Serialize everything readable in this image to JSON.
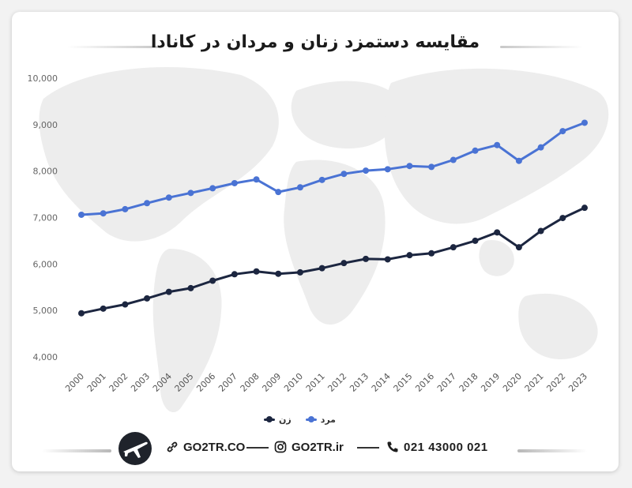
{
  "chart_data": {
    "type": "line",
    "title": "مقایسه دستمزد زنان و مردان در کانادا",
    "x": [
      "2000",
      "2001",
      "2002",
      "2003",
      "2004",
      "2005",
      "2006",
      "2007",
      "2008",
      "2009",
      "2010",
      "2011",
      "2012",
      "2013",
      "2014",
      "2015",
      "2016",
      "2017",
      "2018",
      "2019",
      "2020",
      "2021",
      "2022",
      "2023"
    ],
    "series": [
      {
        "name": "مرد",
        "color": "#4a73d4",
        "values": [
          7060,
          7090,
          7180,
          7310,
          7430,
          7530,
          7630,
          7740,
          7820,
          7550,
          7650,
          7810,
          7940,
          8010,
          8040,
          8110,
          8090,
          8240,
          8440,
          8560,
          8220,
          8510,
          8860,
          9040
        ]
      },
      {
        "name": "زن",
        "color": "#1c2640",
        "values": [
          4940,
          5040,
          5130,
          5260,
          5400,
          5480,
          5640,
          5780,
          5840,
          5790,
          5820,
          5910,
          6020,
          6110,
          6100,
          6190,
          6230,
          6360,
          6500,
          6680,
          6360,
          6710,
          6990,
          7210
        ]
      }
    ],
    "y_ticks": [
      "4,000",
      "5,000",
      "6,000",
      "7,000",
      "8,000",
      "9,000",
      "10,000"
    ],
    "ylim": [
      4000,
      10000
    ],
    "grid": false,
    "legend_position": "bottom-center"
  },
  "footer": {
    "website": "GO2TR.CO",
    "instagram": "GO2TR.ir",
    "phone": "021 43000 021"
  },
  "colors": {
    "male": "#4a73d4",
    "female": "#1c2640",
    "text": "#1b1b1b"
  },
  "icons": [
    "link-icon",
    "instagram-icon",
    "phone-icon",
    "airplane-logo-icon"
  ]
}
